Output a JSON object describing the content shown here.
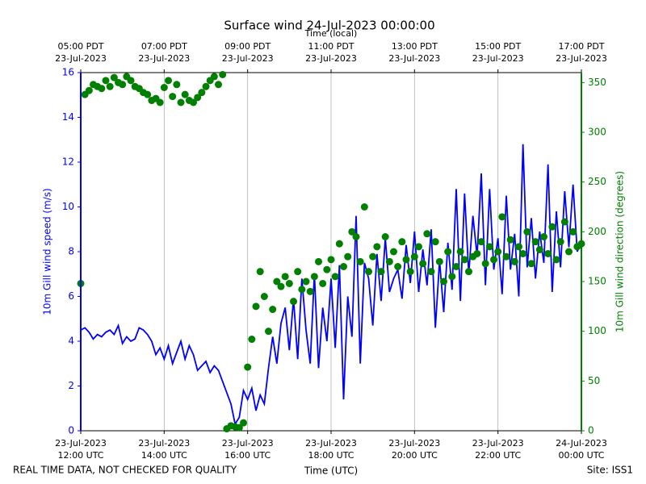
{
  "chart_data": {
    "type": "line_scatter",
    "title": "Surface wind 24-Jul-2023 00:00:00",
    "xlabel": "Time (UTC)",
    "x2label": "Time (local)",
    "ylabel": "10m Gill wind speed (m/s)",
    "y2label": "10m Gill wind direction (degrees)",
    "footer_left": "REAL TIME DATA, NOT CHECKED FOR QUALITY",
    "footer_right": "Site: ISS1",
    "xlim": [
      12,
      24
    ],
    "xticks": [
      {
        "value": 12,
        "label": [
          "23-Jul-2023",
          "12:00 UTC"
        ]
      },
      {
        "value": 14,
        "label": [
          "23-Jul-2023",
          "14:00 UTC"
        ]
      },
      {
        "value": 16,
        "label": [
          "23-Jul-2023",
          "16:00 UTC"
        ]
      },
      {
        "value": 18,
        "label": [
          "23-Jul-2023",
          "18:00 UTC"
        ]
      },
      {
        "value": 20,
        "label": [
          "23-Jul-2023",
          "20:00 UTC"
        ]
      },
      {
        "value": 22,
        "label": [
          "23-Jul-2023",
          "22:00 UTC"
        ]
      },
      {
        "value": 24,
        "label": [
          "24-Jul-2023",
          "00:00 UTC"
        ]
      }
    ],
    "x2ticks": [
      {
        "value": 12,
        "label": [
          "05:00 PDT",
          "23-Jul-2023"
        ]
      },
      {
        "value": 14,
        "label": [
          "07:00 PDT",
          "23-Jul-2023"
        ]
      },
      {
        "value": 16,
        "label": [
          "09:00 PDT",
          "23-Jul-2023"
        ]
      },
      {
        "value": 18,
        "label": [
          "11:00 PDT",
          "23-Jul-2023"
        ]
      },
      {
        "value": 20,
        "label": [
          "13:00 PDT",
          "23-Jul-2023"
        ]
      },
      {
        "value": 22,
        "label": [
          "15:00 PDT",
          "23-Jul-2023"
        ]
      },
      {
        "value": 24,
        "label": [
          "17:00 PDT",
          "23-Jul-2023"
        ]
      }
    ],
    "ylim": [
      0,
      16
    ],
    "yticks": [
      0,
      2,
      4,
      6,
      8,
      10,
      12,
      14,
      16
    ],
    "y2lim": [
      0,
      360
    ],
    "y2ticks": [
      0,
      50,
      100,
      150,
      200,
      250,
      300,
      350
    ],
    "grid": true,
    "x": [
      12.0,
      12.1,
      12.2,
      12.3,
      12.4,
      12.5,
      12.6,
      12.7,
      12.8,
      12.9,
      13.0,
      13.1,
      13.2,
      13.3,
      13.4,
      13.5,
      13.6,
      13.7,
      13.8,
      13.9,
      14.0,
      14.1,
      14.2,
      14.3,
      14.4,
      14.5,
      14.6,
      14.7,
      14.8,
      14.9,
      15.0,
      15.1,
      15.2,
      15.3,
      15.4,
      15.5,
      15.6,
      15.7,
      15.8,
      15.9,
      16.0,
      16.1,
      16.2,
      16.3,
      16.4,
      16.5,
      16.6,
      16.7,
      16.8,
      16.9,
      17.0,
      17.1,
      17.2,
      17.3,
      17.4,
      17.5,
      17.6,
      17.7,
      17.8,
      17.9,
      18.0,
      18.1,
      18.2,
      18.3,
      18.4,
      18.5,
      18.6,
      18.7,
      18.8,
      18.9,
      19.0,
      19.1,
      19.2,
      19.3,
      19.4,
      19.5,
      19.6,
      19.7,
      19.8,
      19.9,
      20.0,
      20.1,
      20.2,
      20.3,
      20.4,
      20.5,
      20.6,
      20.7,
      20.8,
      20.9,
      21.0,
      21.1,
      21.2,
      21.3,
      21.4,
      21.5,
      21.6,
      21.7,
      21.8,
      21.9,
      22.0,
      22.1,
      22.2,
      22.3,
      22.4,
      22.5,
      22.6,
      22.7,
      22.8,
      22.9,
      23.0,
      23.1,
      23.2,
      23.3,
      23.4,
      23.5,
      23.6,
      23.7,
      23.8,
      23.9,
      24.0
    ],
    "series": [
      {
        "name": "10m Gill wind speed",
        "kind": "line",
        "color": "#0000ff",
        "axis": "y",
        "values": [
          4.5,
          4.6,
          4.4,
          4.1,
          4.3,
          4.2,
          4.4,
          4.5,
          4.3,
          4.7,
          3.9,
          4.2,
          4.0,
          4.1,
          4.6,
          4.5,
          4.3,
          4.0,
          3.4,
          3.7,
          3.2,
          3.8,
          3.0,
          3.5,
          4.0,
          3.2,
          3.8,
          3.4,
          2.7,
          2.9,
          3.1,
          2.6,
          2.9,
          2.7,
          2.2,
          1.7,
          1.2,
          0.3,
          0.6,
          1.8,
          1.4,
          1.9,
          0.9,
          1.6,
          1.2,
          2.8,
          4.2,
          3.0,
          4.8,
          5.5,
          3.6,
          5.9,
          3.2,
          6.8,
          4.5,
          3.0,
          7.0,
          2.8,
          5.5,
          4.0,
          6.8,
          3.7,
          7.4,
          1.4,
          6.0,
          4.2,
          9.6,
          3.0,
          7.5,
          6.8,
          4.7,
          7.9,
          5.8,
          8.6,
          6.2,
          6.8,
          7.2,
          5.9,
          8.3,
          6.6,
          8.9,
          6.2,
          8.1,
          6.5,
          9.0,
          4.6,
          7.6,
          5.3,
          8.4,
          6.3,
          10.8,
          5.8,
          10.6,
          7.0,
          9.6,
          7.8,
          11.5,
          6.5,
          10.8,
          7.2,
          8.6,
          6.1,
          10.5,
          7.2,
          8.8,
          6.0,
          12.8,
          7.3,
          9.5,
          6.8,
          8.9,
          7.5,
          11.9,
          6.2,
          9.8,
          7.3,
          10.7,
          8.2,
          11.0,
          8.0,
          8.5
        ]
      },
      {
        "name": "10m Gill wind direction",
        "kind": "scatter",
        "color": "#008000",
        "axis": "y2",
        "values": [
          148,
          338,
          342,
          348,
          346,
          344,
          352,
          346,
          355,
          350,
          348,
          356,
          352,
          346,
          344,
          340,
          338,
          332,
          334,
          330,
          345,
          352,
          336,
          348,
          330,
          338,
          332,
          330,
          335,
          340,
          346,
          352,
          356,
          348,
          358,
          2,
          5,
          4,
          3,
          8,
          64,
          92,
          125,
          160,
          135,
          100,
          122,
          150,
          145,
          155,
          148,
          130,
          160,
          142,
          150,
          140,
          155,
          170,
          148,
          162,
          172,
          155,
          188,
          165,
          175,
          200,
          195,
          170,
          225,
          160,
          175,
          185,
          160,
          195,
          170,
          180,
          165,
          190,
          172,
          160,
          175,
          185,
          168,
          198,
          160,
          190,
          170,
          150,
          180,
          155,
          165,
          180,
          172,
          160,
          175,
          178,
          190,
          168,
          185,
          172,
          180,
          215,
          175,
          192,
          170,
          185,
          178,
          200,
          168,
          190,
          182,
          195,
          178,
          205,
          172,
          190,
          210,
          180,
          200,
          185,
          188
        ]
      }
    ]
  }
}
